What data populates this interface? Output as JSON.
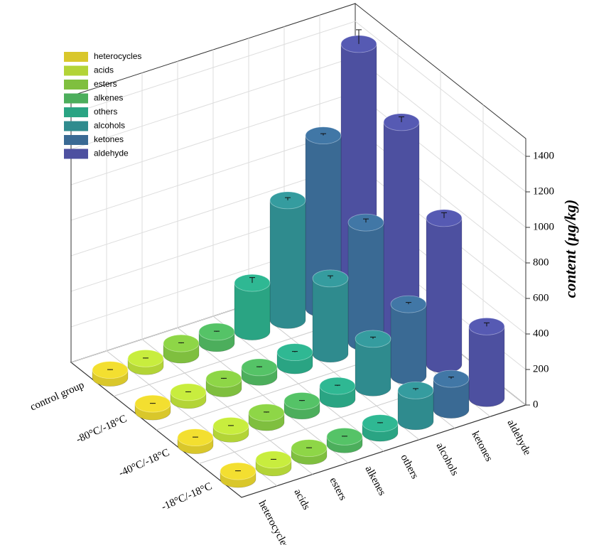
{
  "chart_data": {
    "type": "bar3d",
    "ylabel": "content (μg/kg)",
    "categories": [
      "control group",
      "-80°C/-18°C",
      "-40°C/-18°C",
      "-18°C/-18°C"
    ],
    "series": [
      {
        "name": "heterocycles",
        "color": "#d9c72b",
        "values": [
          20,
          20,
          20,
          20
        ],
        "errors": [
          2,
          2,
          2,
          2
        ]
      },
      {
        "name": "acids",
        "color": "#b3d437",
        "values": [
          20,
          20,
          20,
          20
        ],
        "errors": [
          2,
          2,
          2,
          2
        ]
      },
      {
        "name": "esters",
        "color": "#7fbf3f",
        "values": [
          40,
          30,
          30,
          20
        ],
        "errors": [
          3,
          3,
          3,
          2
        ]
      },
      {
        "name": "alkenes",
        "color": "#4cae5c",
        "values": [
          40,
          30,
          30,
          20
        ],
        "errors": [
          3,
          3,
          3,
          2
        ]
      },
      {
        "name": "others",
        "color": "#2aa483",
        "values": [
          250,
          50,
          50,
          30
        ],
        "errors": [
          30,
          4,
          4,
          3
        ]
      },
      {
        "name": "alcohols",
        "color": "#2f8b8e",
        "values": [
          650,
          400,
          250,
          150
        ],
        "errors": [
          15,
          15,
          10,
          10
        ]
      },
      {
        "name": "ketones",
        "color": "#3a6a94",
        "values": [
          950,
          650,
          380,
          150
        ],
        "errors": [
          10,
          20,
          10,
          10
        ]
      },
      {
        "name": "aldehyde",
        "color": "#4d50a0",
        "values": [
          1400,
          1150,
          800,
          380
        ],
        "errors": [
          80,
          30,
          30,
          20
        ]
      }
    ],
    "ylim": [
      0,
      1500
    ],
    "yticks": [
      0,
      200,
      400,
      600,
      800,
      1000,
      1200,
      1400
    ],
    "grid": true,
    "legend": "top-left"
  }
}
